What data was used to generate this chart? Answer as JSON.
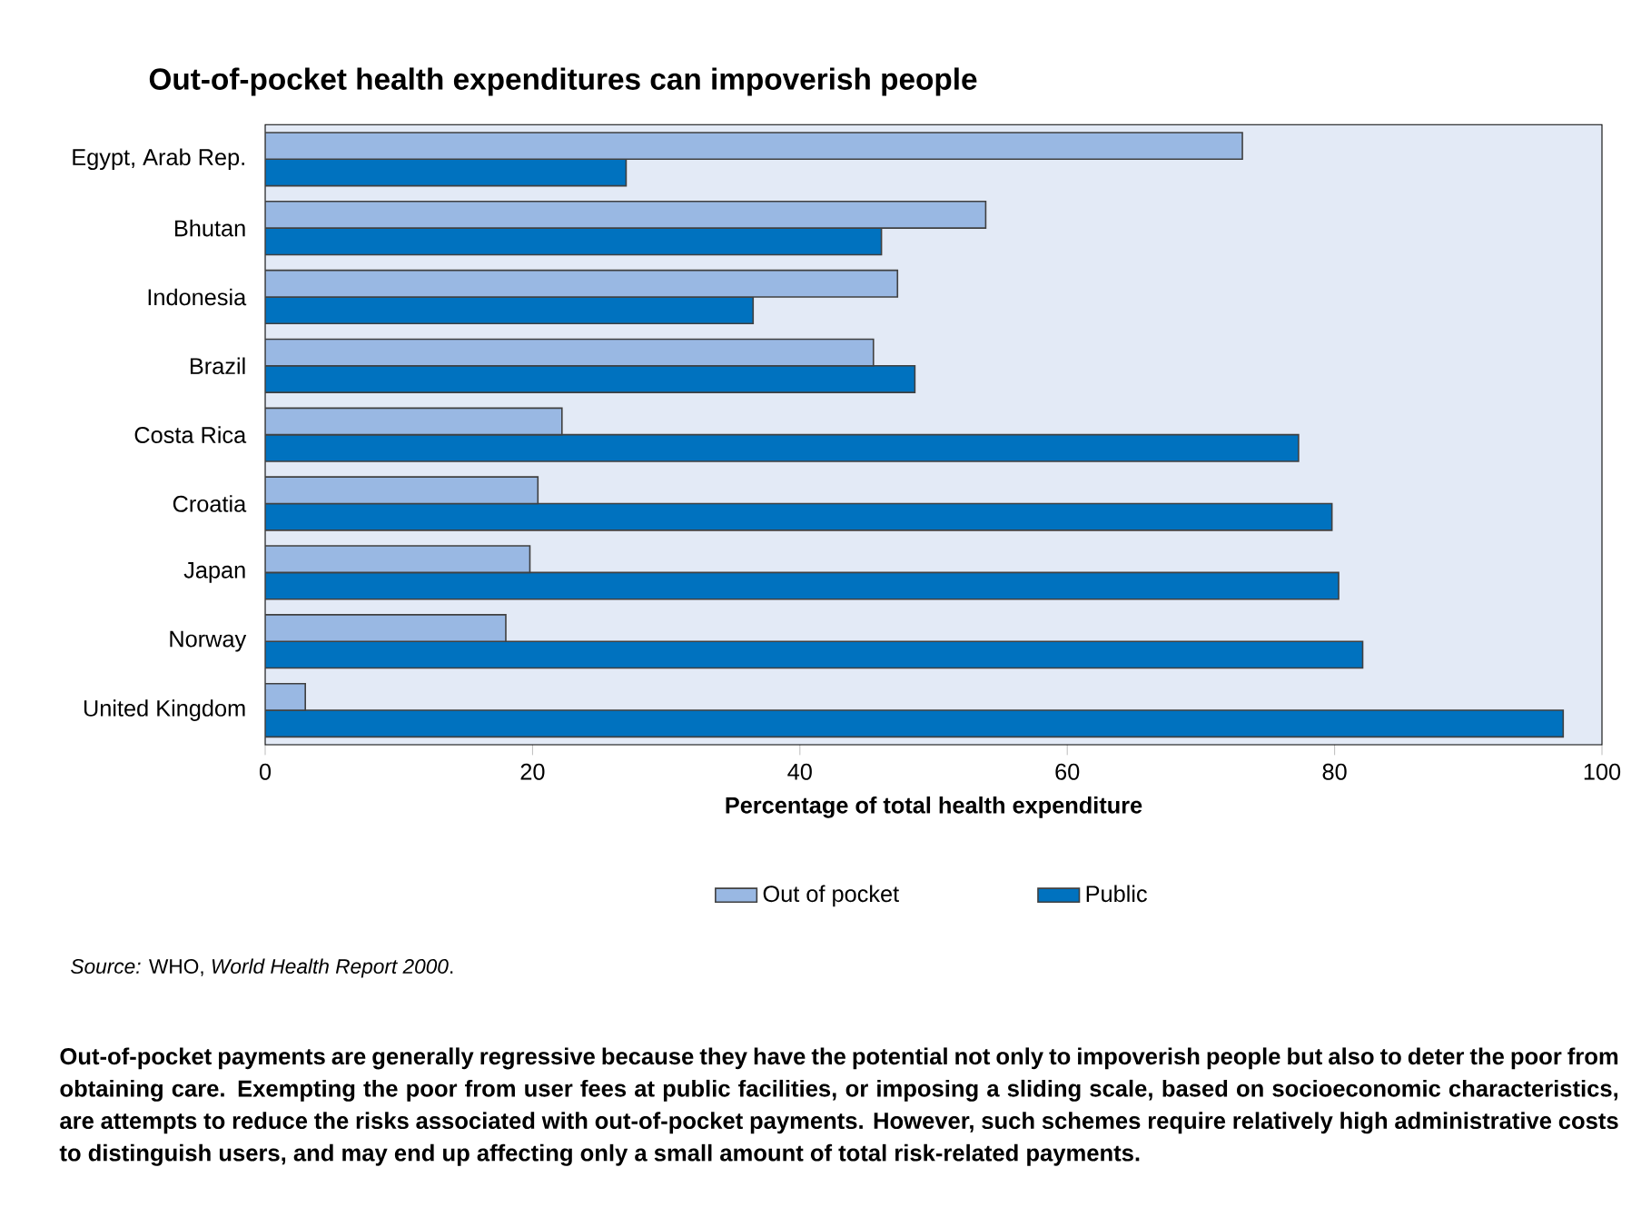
{
  "chart_data": {
    "type": "bar",
    "orientation": "horizontal",
    "title": "Out-of-pocket health expenditures can impoverish people",
    "xlabel": "Percentage of total health expenditure",
    "categories": [
      "Egypt, Arab Rep.",
      "Bhutan",
      "Indonesia",
      "Brazil",
      "Costa Rica",
      "Croatia",
      "Japan",
      "Norway",
      "United Kingdom"
    ],
    "series": [
      {
        "name": "Out of pocket",
        "color": "#99b8e3",
        "values": [
          73.1,
          53.9,
          47.3,
          45.5,
          22.2,
          20.4,
          19.8,
          18.0,
          3.0
        ]
      },
      {
        "name": "Public",
        "color": "#0072bf",
        "values": [
          27.0,
          46.1,
          36.5,
          48.6,
          77.3,
          79.8,
          80.3,
          82.1,
          97.1
        ]
      }
    ],
    "xlim": [
      0,
      100
    ],
    "xticks": [
      0,
      20,
      40,
      60,
      80,
      100
    ],
    "legend": "bottom",
    "grid": false,
    "annotations": [
      "*Source:*  WHO, *World Health Report 2000*.",
      "Out-of-pocket payments are generally regressive because they have the potential not only to impoverish people but also to deter the poor from obtaining care.  Exempting the poor from user fees at public facilities, or imposing a sliding scale, based on socioeconomic characteristics, are attempts to reduce the risks associated with out-of-pocket payments.  However, such schemes require relatively high administrative costs to distinguish users, and may end up affecting only a small amount of total risk-related payments."
    ]
  }
}
